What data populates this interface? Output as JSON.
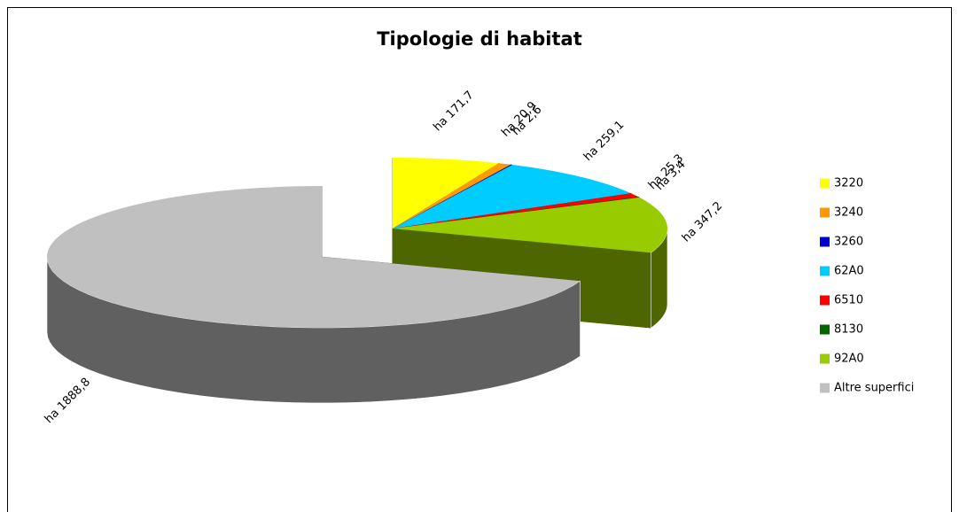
{
  "chart_data": {
    "type": "pie",
    "title": "Tipologie di habitat",
    "categories": [
      "3220",
      "3240",
      "3260",
      "62A0",
      "6510",
      "8130",
      "92A0",
      "Altre superfici"
    ],
    "values": [
      171.7,
      20.9,
      2.6,
      259.1,
      25.3,
      3.4,
      347.2,
      1888.8
    ],
    "value_labels": [
      "ha 171,7",
      "ha 20,9",
      "ha 2,6",
      "ha 259,1",
      "ha 25,3",
      "ha 3,4",
      "ha 347,2",
      "ha 1888,8"
    ],
    "colors": [
      "#ffff00",
      "#ff9900",
      "#0000cc",
      "#00ccff",
      "#ff0000",
      "#006600",
      "#99cc00",
      "#c0c0c0"
    ],
    "legend": "right"
  }
}
